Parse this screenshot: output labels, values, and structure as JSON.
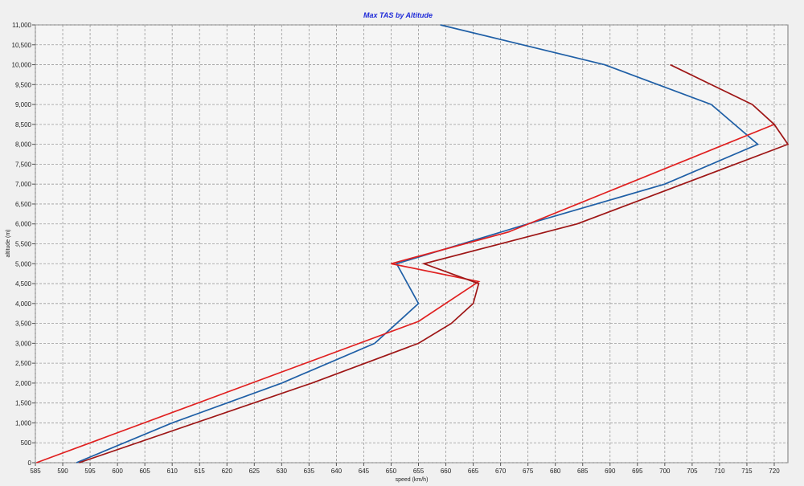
{
  "chart_data": {
    "type": "line",
    "title": "Max TAS by Altitude",
    "xlabel": "speed (km/h)",
    "ylabel": "altitude (m)",
    "xlim": [
      585,
      722.5
    ],
    "ylim": [
      0,
      11000
    ],
    "x_ticks": [
      "585",
      "590",
      "595",
      "600",
      "605",
      "610",
      "615",
      "620",
      "625",
      "630",
      "635",
      "640",
      "645",
      "650",
      "655",
      "660",
      "665",
      "670",
      "675",
      "680",
      "685",
      "690",
      "695",
      "700",
      "705",
      "710",
      "715",
      "720"
    ],
    "y_ticks": [
      "0",
      "500",
      "1,000",
      "1,500",
      "2,000",
      "2,500",
      "3,000",
      "3,500",
      "4,000",
      "4,500",
      "5,000",
      "5,500",
      "6,000",
      "6,500",
      "7,000",
      "7,500",
      "8,000",
      "8,500",
      "9,000",
      "9,500",
      "10,000",
      "10,500",
      "11,000"
    ],
    "grid": true,
    "legend": "none",
    "series": [
      {
        "color": "#1f5fa6",
        "points": [
          [
            592.5,
            0
          ],
          [
            610,
            1000
          ],
          [
            630,
            2000
          ],
          [
            647,
            3000
          ],
          [
            655,
            4000
          ],
          [
            651,
            5000
          ],
          [
            675,
            6000
          ],
          [
            700,
            7000
          ],
          [
            717,
            8000
          ],
          [
            708.5,
            9000
          ],
          [
            689,
            10000
          ],
          [
            659,
            11000
          ]
        ]
      },
      {
        "color": "#e02020",
        "points": [
          [
            585.2,
            0
          ],
          [
            655,
            3550
          ],
          [
            666,
            4550
          ],
          [
            650,
            5000
          ],
          [
            671.5,
            5800
          ],
          [
            720,
            8500
          ]
        ]
      },
      {
        "color": "#9e1616",
        "points": [
          [
            593,
            0
          ],
          [
            635.5,
            2000
          ],
          [
            655,
            3000
          ],
          [
            661,
            3500
          ],
          [
            665,
            4000
          ],
          [
            666,
            4500
          ],
          [
            656,
            5000
          ],
          [
            684,
            6000
          ],
          [
            722.5,
            8000
          ],
          [
            720,
            8500
          ],
          [
            716,
            9000
          ],
          [
            701,
            10000
          ]
        ]
      }
    ]
  }
}
